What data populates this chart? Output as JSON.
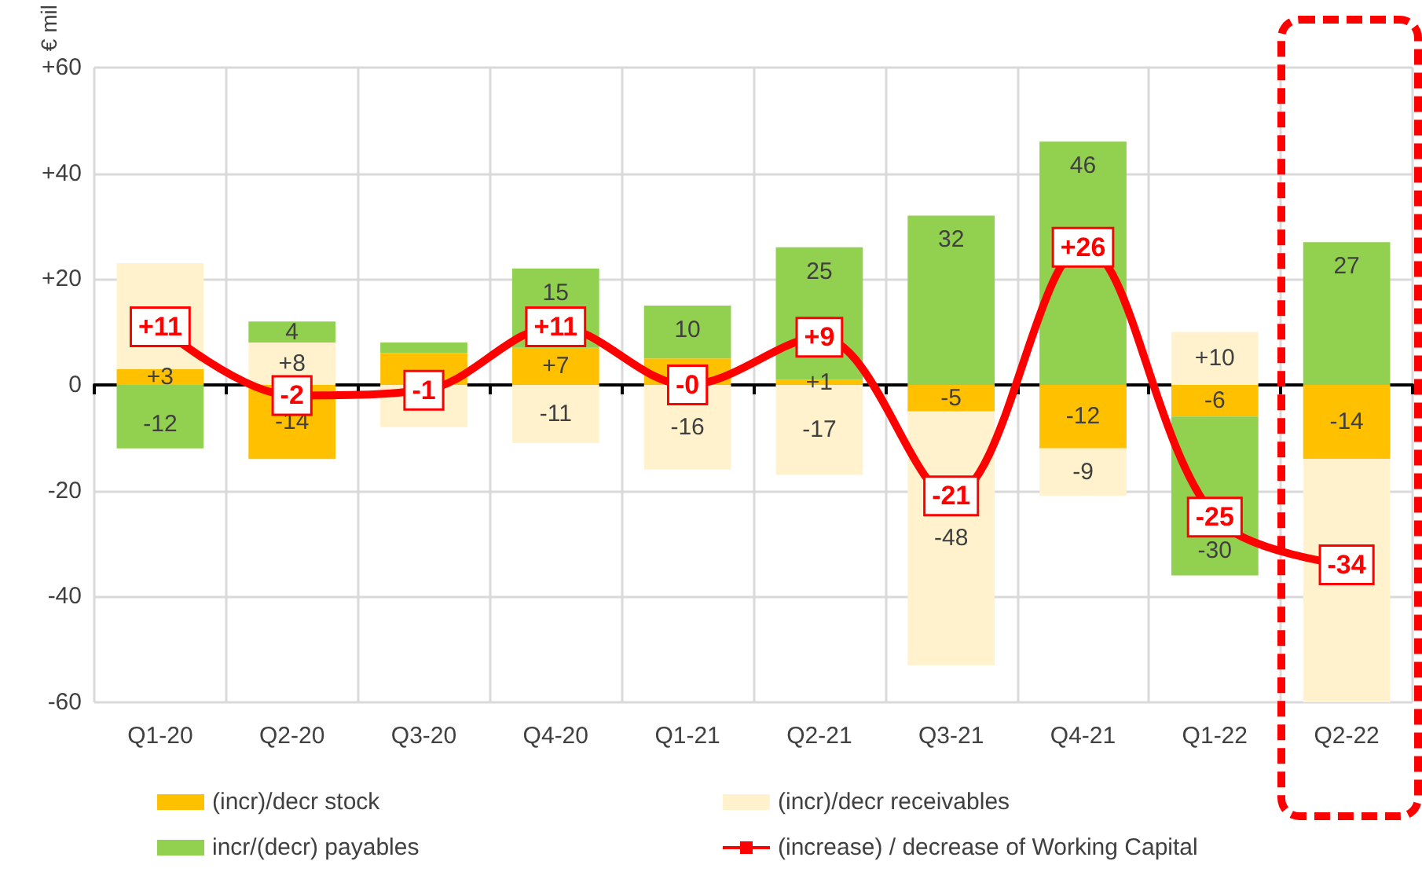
{
  "chart_data": {
    "type": "bar",
    "stacked": true,
    "ylabel": "€ mil",
    "categories": [
      "Q1-20",
      "Q2-20",
      "Q3-20",
      "Q4-20",
      "Q1-21",
      "Q2-21",
      "Q3-21",
      "Q4-21",
      "Q1-22",
      "Q2-22"
    ],
    "series": [
      {
        "name": "(incr)/decr stock",
        "color": "#ffc000",
        "values": [
          3,
          -14,
          6,
          7,
          5,
          1,
          -5,
          -12,
          -6,
          -14
        ],
        "value_labels": [
          "+3",
          "-14",
          null,
          "+7",
          null,
          "+1",
          "-5",
          "-12",
          "-6",
          "-14"
        ]
      },
      {
        "name": "(incr)/decr receivables",
        "color": "#fff2cc",
        "values": [
          20,
          8,
          -8,
          -11,
          -16,
          -17,
          -48,
          -9,
          10,
          -46
        ],
        "value_labels": [
          null,
          "+8",
          null,
          "-11",
          "-16",
          "-17",
          "-48",
          "-9",
          "+10",
          null
        ]
      },
      {
        "name": "incr/(decr) payables",
        "color": "#92d050",
        "values": [
          -12,
          4,
          2,
          15,
          10,
          25,
          32,
          46,
          -30,
          27
        ],
        "value_labels": [
          "-12",
          "4",
          null,
          "15",
          "10",
          "25",
          "32",
          "46",
          "-30",
          "27"
        ]
      },
      {
        "name": "(increase) / decrease of Working Capital",
        "type": "line",
        "color": "#ff0000",
        "values": [
          11,
          -2,
          -1,
          11,
          0,
          9,
          -21,
          26,
          -25,
          -34
        ],
        "value_labels": [
          "+11",
          "-2",
          "-1",
          "+11",
          "-0",
          "+9",
          "-21",
          "+26",
          "-25",
          "-34"
        ]
      }
    ],
    "ylim": [
      -60,
      60
    ],
    "yticks": [
      {
        "value": -60,
        "label": "-60"
      },
      {
        "value": -40,
        "label": "-40"
      },
      {
        "value": -20,
        "label": "-20"
      },
      {
        "value": 0,
        "label": "0"
      },
      {
        "value": 20,
        "label": "+20"
      },
      {
        "value": 40,
        "label": "+40"
      },
      {
        "value": 60,
        "label": "+60"
      }
    ],
    "grid": true,
    "legend": "bottom",
    "marker": "square",
    "line_style": "solid"
  }
}
